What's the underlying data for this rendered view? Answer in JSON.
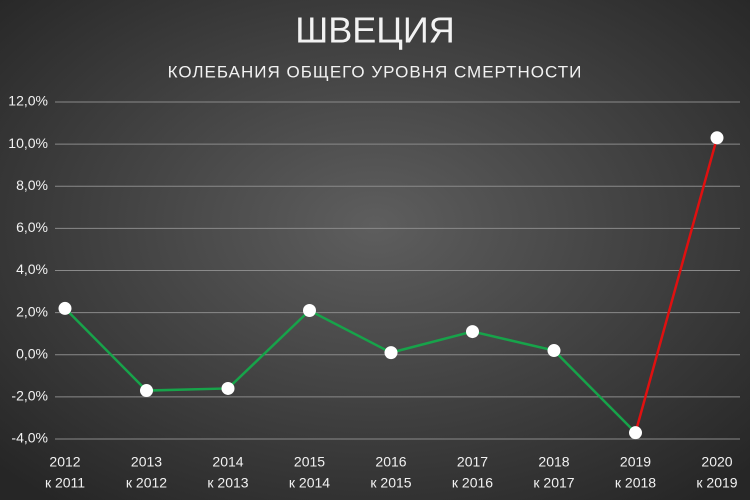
{
  "chart_data": {
    "type": "line",
    "title": "ШВЕЦИЯ",
    "subtitle": "КОЛЕБАНИЯ ОБЩЕГО УРОВНЯ СМЕРТНОСТИ",
    "categories": [
      [
        "2012",
        "к 2011"
      ],
      [
        "2013",
        "к 2012"
      ],
      [
        "2014",
        "к 2013"
      ],
      [
        "2015",
        "к 2014"
      ],
      [
        "2016",
        "к 2015"
      ],
      [
        "2017",
        "к 2016"
      ],
      [
        "2018",
        "к 2017"
      ],
      [
        "2019",
        "к 2018"
      ],
      [
        "2020",
        "к 2019"
      ]
    ],
    "values": [
      2.2,
      -1.7,
      -1.6,
      2.1,
      0.1,
      1.1,
      0.2,
      -3.7,
      10.3
    ],
    "color": "#17a34a",
    "last_segment_color": "#e01010",
    "marker_color": "#ffffff",
    "ylim": [
      -4,
      12
    ],
    "yticks": [
      {
        "value": -4,
        "label": "-4,0%"
      },
      {
        "value": -2,
        "label": "-2,0%"
      },
      {
        "value": 0,
        "label": "0,0%"
      },
      {
        "value": 2,
        "label": "2,0%"
      },
      {
        "value": 4,
        "label": "4,0%"
      },
      {
        "value": 6,
        "label": "6,0%"
      },
      {
        "value": 8,
        "label": "8,0%"
      },
      {
        "value": 10,
        "label": "10,0%"
      },
      {
        "value": 12,
        "label": "12,0%"
      }
    ],
    "grid": true
  }
}
